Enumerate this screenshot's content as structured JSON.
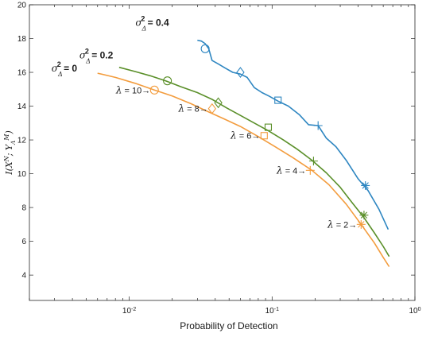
{
  "chart_data": {
    "type": "line",
    "xlabel": "Probability of Detection",
    "ylabel": "I(X^N ; Y_Λ^M)",
    "xscale": "log",
    "xlim": [
      0.002,
      1
    ],
    "ylim": [
      2.5,
      20
    ],
    "x_ticks": [
      0.01,
      0.1,
      1
    ],
    "x_tick_labels": [
      {
        "base": "10",
        "exp": "-2"
      },
      {
        "base": "10",
        "exp": "-1"
      },
      {
        "base": "10",
        "exp": "0"
      }
    ],
    "y_ticks": [
      4,
      6,
      8,
      10,
      12,
      14,
      16,
      18,
      20
    ],
    "grid": false,
    "series": [
      {
        "name": "σ_Δ² = 0.4",
        "color": "#2e86c1",
        "label": {
          "base": "σ",
          "sub": "Δ",
          "sup": "2",
          "value": "= 0.4"
        },
        "x": [
          0.03,
          0.032,
          0.034,
          0.036,
          0.038,
          0.042,
          0.047,
          0.053,
          0.06,
          0.067,
          0.075,
          0.085,
          0.095,
          0.11,
          0.13,
          0.155,
          0.18,
          0.21,
          0.24,
          0.28,
          0.33,
          0.4,
          0.47,
          0.56,
          0.65
        ],
        "y": [
          17.9,
          17.85,
          17.7,
          17.4,
          16.7,
          16.5,
          16.25,
          16.0,
          15.9,
          15.7,
          15.1,
          14.8,
          14.6,
          14.3,
          14.0,
          13.5,
          12.9,
          12.85,
          12.1,
          11.6,
          10.8,
          9.7,
          9.0,
          7.9,
          6.7
        ],
        "markers": [
          {
            "x": 0.034,
            "y": 17.4,
            "shape": "circle"
          },
          {
            "x": 0.06,
            "y": 16.0,
            "shape": "diamond"
          },
          {
            "x": 0.11,
            "y": 14.35,
            "shape": "square"
          },
          {
            "x": 0.21,
            "y": 12.85,
            "shape": "plus"
          },
          {
            "x": 0.45,
            "y": 9.3,
            "shape": "asterisk"
          }
        ]
      },
      {
        "name": "σ_Δ² = 0.2",
        "color": "#5a8f29",
        "label": {
          "base": "σ",
          "sub": "Δ",
          "sup": "2",
          "value": "= 0.2"
        },
        "x": [
          0.0085,
          0.011,
          0.014,
          0.018,
          0.023,
          0.03,
          0.038,
          0.048,
          0.06,
          0.075,
          0.094,
          0.12,
          0.15,
          0.19,
          0.24,
          0.3,
          0.37,
          0.44,
          0.52,
          0.6,
          0.66
        ],
        "y": [
          16.3,
          16.05,
          15.8,
          15.5,
          15.15,
          14.8,
          14.4,
          13.9,
          13.45,
          13.0,
          12.55,
          12.0,
          11.45,
          10.8,
          10.05,
          9.2,
          8.2,
          7.4,
          6.5,
          5.7,
          5.1
        ],
        "markers": [
          {
            "x": 0.0185,
            "y": 15.5,
            "shape": "circle"
          },
          {
            "x": 0.042,
            "y": 14.2,
            "shape": "diamond"
          },
          {
            "x": 0.094,
            "y": 12.75,
            "shape": "square"
          },
          {
            "x": 0.195,
            "y": 10.75,
            "shape": "plus"
          },
          {
            "x": 0.44,
            "y": 7.55,
            "shape": "asterisk"
          }
        ]
      },
      {
        "name": "σ_Δ² = 0",
        "color": "#f39c3d",
        "label": {
          "base": "σ",
          "sub": "Δ",
          "sup": "2",
          "value": "= 0"
        },
        "x": [
          0.006,
          0.008,
          0.011,
          0.015,
          0.02,
          0.027,
          0.035,
          0.046,
          0.06,
          0.08,
          0.105,
          0.14,
          0.19,
          0.25,
          0.33,
          0.42,
          0.52,
          0.6,
          0.66
        ],
        "y": [
          15.95,
          15.7,
          15.35,
          14.95,
          14.6,
          14.15,
          13.7,
          13.25,
          12.8,
          12.2,
          11.6,
          10.95,
          10.2,
          9.35,
          8.2,
          7.0,
          5.9,
          5.05,
          4.5
        ],
        "markers": [
          {
            "x": 0.015,
            "y": 14.95,
            "shape": "circle"
          },
          {
            "x": 0.038,
            "y": 13.85,
            "shape": "diamond"
          },
          {
            "x": 0.088,
            "y": 12.25,
            "shape": "square"
          },
          {
            "x": 0.185,
            "y": 10.2,
            "shape": "plus"
          },
          {
            "x": 0.42,
            "y": 7.0,
            "shape": "asterisk"
          }
        ]
      }
    ],
    "annotations": [
      {
        "symbol": "λ",
        "text": "= 10",
        "arrow": "→",
        "x": 0.015,
        "y": 14.95
      },
      {
        "symbol": "λ",
        "text": "= 8",
        "arrow": "→",
        "x": 0.038,
        "y": 13.85
      },
      {
        "symbol": "λ",
        "text": "= 6",
        "arrow": "→",
        "x": 0.088,
        "y": 12.25
      },
      {
        "symbol": "λ",
        "text": "= 4",
        "arrow": "→",
        "x": 0.185,
        "y": 10.2
      },
      {
        "symbol": "λ",
        "text": "= 2",
        "arrow": "→",
        "x": 0.42,
        "y": 7.0
      }
    ]
  }
}
